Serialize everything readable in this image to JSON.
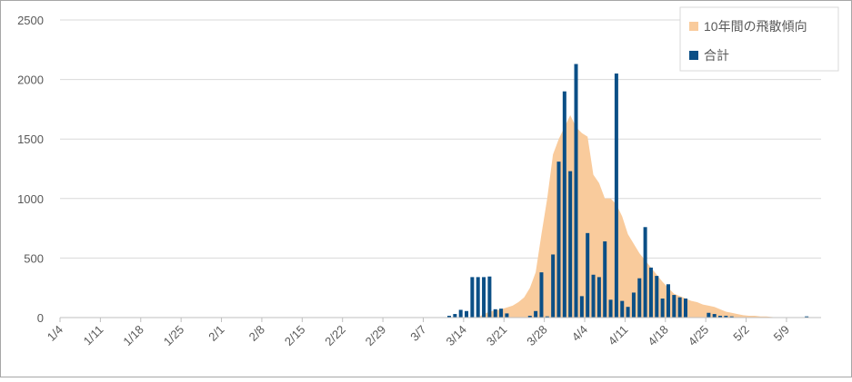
{
  "chart_data": {
    "type": "bar",
    "categories": [
      "1/4",
      null,
      null,
      null,
      null,
      null,
      null,
      "1/11",
      null,
      null,
      null,
      null,
      null,
      null,
      "1/18",
      null,
      null,
      null,
      null,
      null,
      null,
      "1/25",
      null,
      null,
      null,
      null,
      null,
      null,
      "2/1",
      null,
      null,
      null,
      null,
      null,
      null,
      "2/8",
      null,
      null,
      null,
      null,
      null,
      null,
      "2/15",
      null,
      null,
      null,
      null,
      null,
      null,
      "2/22",
      null,
      null,
      null,
      null,
      null,
      null,
      "2/29",
      null,
      null,
      null,
      null,
      null,
      null,
      "3/7",
      null,
      null,
      null,
      null,
      null,
      null,
      "3/14",
      null,
      null,
      null,
      null,
      null,
      null,
      "3/21",
      null,
      null,
      null,
      null,
      null,
      null,
      "3/28",
      null,
      null,
      null,
      null,
      null,
      null,
      "4/4",
      null,
      null,
      null,
      null,
      null,
      null,
      "4/11",
      null,
      null,
      null,
      null,
      null,
      null,
      "4/18",
      null,
      null,
      null,
      null,
      null,
      null,
      "4/25",
      null,
      null,
      null,
      null,
      null,
      null,
      "5/2",
      null,
      null,
      null,
      null,
      null,
      null,
      "5/9",
      null,
      null,
      null,
      null,
      null
    ],
    "series": [
      {
        "name": "10年間の飛散傾向",
        "type": "area",
        "color": "#f9cb9c",
        "values": [
          0,
          0,
          0,
          0,
          0,
          0,
          0,
          0,
          0,
          0,
          0,
          0,
          0,
          0,
          0,
          0,
          0,
          0,
          0,
          0,
          0,
          0,
          0,
          0,
          0,
          0,
          0,
          0,
          0,
          0,
          0,
          0,
          0,
          0,
          0,
          0,
          0,
          0,
          0,
          0,
          0,
          0,
          0,
          0,
          0,
          0,
          0,
          0,
          0,
          0,
          0,
          0,
          0,
          0,
          0,
          0,
          0,
          0,
          0,
          0,
          0,
          0,
          0,
          0,
          0,
          0,
          0,
          0,
          0,
          0,
          0,
          0,
          0,
          30,
          50,
          60,
          70,
          85,
          100,
          130,
          170,
          250,
          380,
          700,
          1000,
          1370,
          1500,
          1600,
          1700,
          1600,
          1550,
          1520,
          1200,
          1130,
          1000,
          1000,
          950,
          850,
          700,
          620,
          540,
          480,
          420,
          360,
          300,
          250,
          200,
          180,
          160,
          140,
          130,
          110,
          100,
          90,
          70,
          50,
          40,
          30,
          20,
          15,
          15,
          10,
          10,
          5,
          0,
          0,
          0,
          0,
          0,
          0,
          0,
          0
        ]
      },
      {
        "name": "合計",
        "type": "bar",
        "color": "#0b4f86",
        "values": [
          0,
          0,
          0,
          0,
          0,
          0,
          0,
          0,
          0,
          0,
          0,
          0,
          0,
          0,
          0,
          0,
          0,
          0,
          0,
          0,
          0,
          0,
          0,
          0,
          0,
          0,
          0,
          0,
          0,
          0,
          0,
          0,
          0,
          0,
          0,
          0,
          0,
          0,
          0,
          0,
          0,
          0,
          0,
          0,
          0,
          0,
          0,
          0,
          0,
          0,
          0,
          0,
          0,
          0,
          0,
          0,
          0,
          0,
          0,
          0,
          0,
          0,
          0,
          0,
          0,
          0,
          0,
          15,
          30,
          65,
          55,
          340,
          340,
          340,
          345,
          70,
          75,
          35,
          0,
          0,
          0,
          15,
          55,
          380,
          10,
          530,
          1310,
          1900,
          1230,
          2130,
          180,
          710,
          360,
          340,
          640,
          150,
          2050,
          140,
          90,
          210,
          330,
          760,
          420,
          350,
          160,
          280,
          190,
          170,
          160,
          0,
          0,
          0,
          40,
          30,
          15,
          15,
          10,
          0,
          0,
          0,
          0,
          0,
          0,
          0,
          0,
          0,
          0,
          0,
          0,
          10,
          0,
          0
        ]
      }
    ],
    "ylim": [
      0,
      2500
    ],
    "yticks": [
      0,
      500,
      1000,
      1500,
      2000,
      2500
    ],
    "grid": true,
    "legend": "top-right"
  }
}
